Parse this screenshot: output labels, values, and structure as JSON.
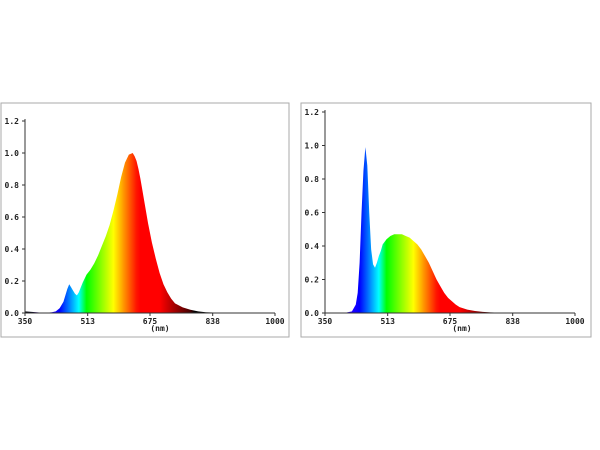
{
  "chart_data": [
    {
      "type": "area",
      "xlabel": "(nm)",
      "ylabel": "",
      "xlim": [
        350,
        1000
      ],
      "ylim": [
        0,
        1.2
      ],
      "xticks": [
        "350",
        "513",
        "675",
        "838",
        "1000"
      ],
      "yticks": [
        "0.0",
        "0.2",
        "0.4",
        "0.6",
        "0.8",
        "1.0",
        "1.2"
      ],
      "fill": "visible-spectrum gradient",
      "grid": false,
      "series": [
        {
          "x": [
            350,
            380,
            400,
            420,
            430,
            440,
            450,
            455,
            460,
            465,
            470,
            475,
            480,
            485,
            490,
            495,
            500,
            510,
            520,
            530,
            540,
            550,
            560,
            570,
            580,
            590,
            600,
            610,
            620,
            630,
            635,
            640,
            645,
            650,
            655,
            660,
            670,
            680,
            690,
            700,
            710,
            720,
            730,
            740,
            760,
            780,
            800,
            820,
            840,
            870,
            900,
            950,
            1000
          ],
          "values": [
            0.01,
            0.005,
            0.0,
            0.005,
            0.01,
            0.03,
            0.07,
            0.11,
            0.15,
            0.18,
            0.16,
            0.14,
            0.12,
            0.11,
            0.13,
            0.16,
            0.19,
            0.24,
            0.27,
            0.31,
            0.36,
            0.42,
            0.48,
            0.55,
            0.64,
            0.74,
            0.85,
            0.94,
            0.99,
            1.0,
            0.98,
            0.95,
            0.9,
            0.84,
            0.77,
            0.7,
            0.56,
            0.44,
            0.34,
            0.25,
            0.18,
            0.13,
            0.09,
            0.06,
            0.035,
            0.02,
            0.01,
            0.005,
            0.003,
            0.002,
            0.001,
            0.0,
            0.0
          ]
        }
      ]
    },
    {
      "type": "area",
      "xlabel": "(nm)",
      "ylabel": "",
      "xlim": [
        350,
        1000
      ],
      "ylim": [
        0,
        1.2
      ],
      "xticks": [
        "350",
        "513",
        "675",
        "838",
        "1000"
      ],
      "yticks": [
        "0.0",
        "0.2",
        "0.4",
        "0.6",
        "0.8",
        "1.0",
        "1.2"
      ],
      "fill": "visible-spectrum gradient",
      "grid": false,
      "series": [
        {
          "x": [
            350,
            400,
            420,
            430,
            435,
            440,
            445,
            450,
            455,
            460,
            465,
            470,
            475,
            480,
            485,
            490,
            495,
            500,
            510,
            520,
            530,
            540,
            550,
            560,
            570,
            580,
            590,
            600,
            610,
            620,
            630,
            640,
            650,
            660,
            670,
            680,
            690,
            700,
            720,
            740,
            760,
            780,
            800,
            840,
            900,
            1000
          ],
          "values": [
            0.0,
            0.0,
            0.01,
            0.05,
            0.12,
            0.3,
            0.6,
            0.85,
            0.99,
            0.88,
            0.6,
            0.38,
            0.29,
            0.27,
            0.3,
            0.34,
            0.37,
            0.41,
            0.44,
            0.46,
            0.47,
            0.47,
            0.47,
            0.46,
            0.45,
            0.43,
            0.41,
            0.38,
            0.34,
            0.3,
            0.25,
            0.2,
            0.16,
            0.12,
            0.09,
            0.07,
            0.05,
            0.035,
            0.02,
            0.012,
            0.007,
            0.004,
            0.002,
            0.001,
            0.0,
            0.0
          ]
        }
      ]
    }
  ]
}
